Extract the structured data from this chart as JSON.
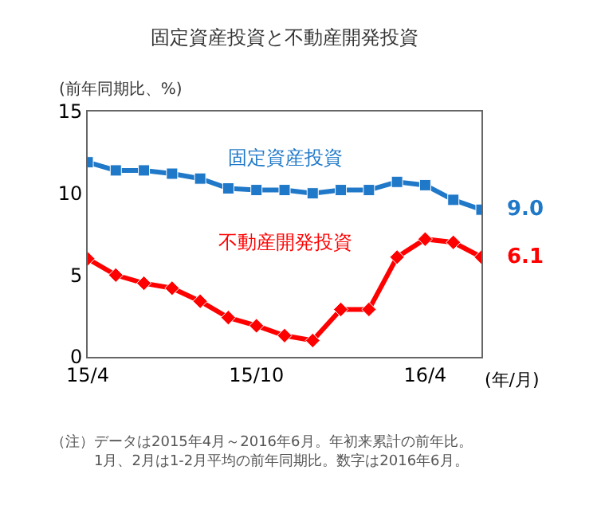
{
  "chart_data": {
    "type": "line",
    "title": "固定資産投資と不動産開発投資",
    "ylabel": "(前年同期比、%)",
    "xlabel": "(年/月)",
    "categories": [
      "15/4",
      null,
      null,
      null,
      null,
      null,
      "15/10",
      null,
      null,
      null,
      null,
      null,
      "16/4",
      null,
      null
    ],
    "series": [
      {
        "name": "固定資産投資",
        "color": "#1f78c8",
        "marker": "square",
        "values": [
          11.9,
          11.4,
          11.4,
          11.2,
          10.9,
          10.3,
          10.2,
          10.2,
          10.0,
          10.2,
          10.2,
          10.7,
          10.5,
          9.6,
          9.0
        ],
        "value_labels": [
          null,
          null,
          null,
          null,
          null,
          null,
          null,
          null,
          null,
          null,
          null,
          null,
          null,
          null,
          "9.0"
        ]
      },
      {
        "name": "不動産開発投資",
        "color": "#ff0000",
        "marker": "diamond",
        "values": [
          6.0,
          5.0,
          4.5,
          4.2,
          3.4,
          2.4,
          1.9,
          1.3,
          1.0,
          2.9,
          2.9,
          6.1,
          7.2,
          7.0,
          6.1
        ],
        "value_labels": [
          null,
          null,
          null,
          null,
          null,
          null,
          null,
          null,
          null,
          null,
          null,
          null,
          null,
          null,
          "6.1"
        ]
      }
    ],
    "ylim": [
      0,
      15
    ],
    "yticks": [
      0,
      5,
      10,
      15
    ],
    "grid": false,
    "line_style": "solid",
    "annotations": [
      "（注）データは2015年4月～2016年6月。年初来累計の前年比。",
      "　　　1月、2月は1-2月平均の前年同期比。数字は2016年6月。"
    ]
  }
}
